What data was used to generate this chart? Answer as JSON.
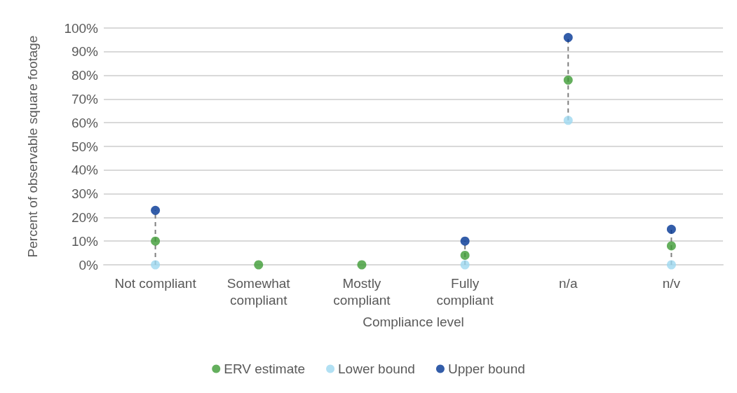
{
  "chart_data": {
    "type": "scatter",
    "xlabel": "Compliance level",
    "ylabel": "Percent of observable square footage",
    "categories": [
      "Not compliant",
      "Somewhat\ncompliant",
      "Mostly\ncompliant",
      "Fully\ncompliant",
      "n/a",
      "n/v"
    ],
    "series": [
      {
        "name": "ERV estimate",
        "color": "#3d9b35",
        "values": [
          10,
          0,
          0,
          4,
          78,
          8
        ]
      },
      {
        "name": "Lower bound",
        "color": "#9dd8f0",
        "values": [
          0,
          null,
          null,
          0,
          61,
          0
        ]
      },
      {
        "name": "Upper bound",
        "color": "#003594",
        "values": [
          23,
          null,
          null,
          10,
          96,
          15
        ]
      }
    ],
    "ylim": [
      0,
      100
    ],
    "yticks": [
      {
        "value": 0,
        "label": "0%"
      },
      {
        "value": 10,
        "label": "10%"
      },
      {
        "value": 20,
        "label": "20%"
      },
      {
        "value": 30,
        "label": "30%"
      },
      {
        "value": 40,
        "label": "40%"
      },
      {
        "value": 50,
        "label": "50%"
      },
      {
        "value": 60,
        "label": "60%"
      },
      {
        "value": 70,
        "label": "70%"
      },
      {
        "value": 80,
        "label": "80%"
      },
      {
        "value": 90,
        "label": "90%"
      },
      {
        "value": 100,
        "label": "100%"
      }
    ],
    "grid": "y",
    "legend": "bottom",
    "marker": "circle"
  }
}
